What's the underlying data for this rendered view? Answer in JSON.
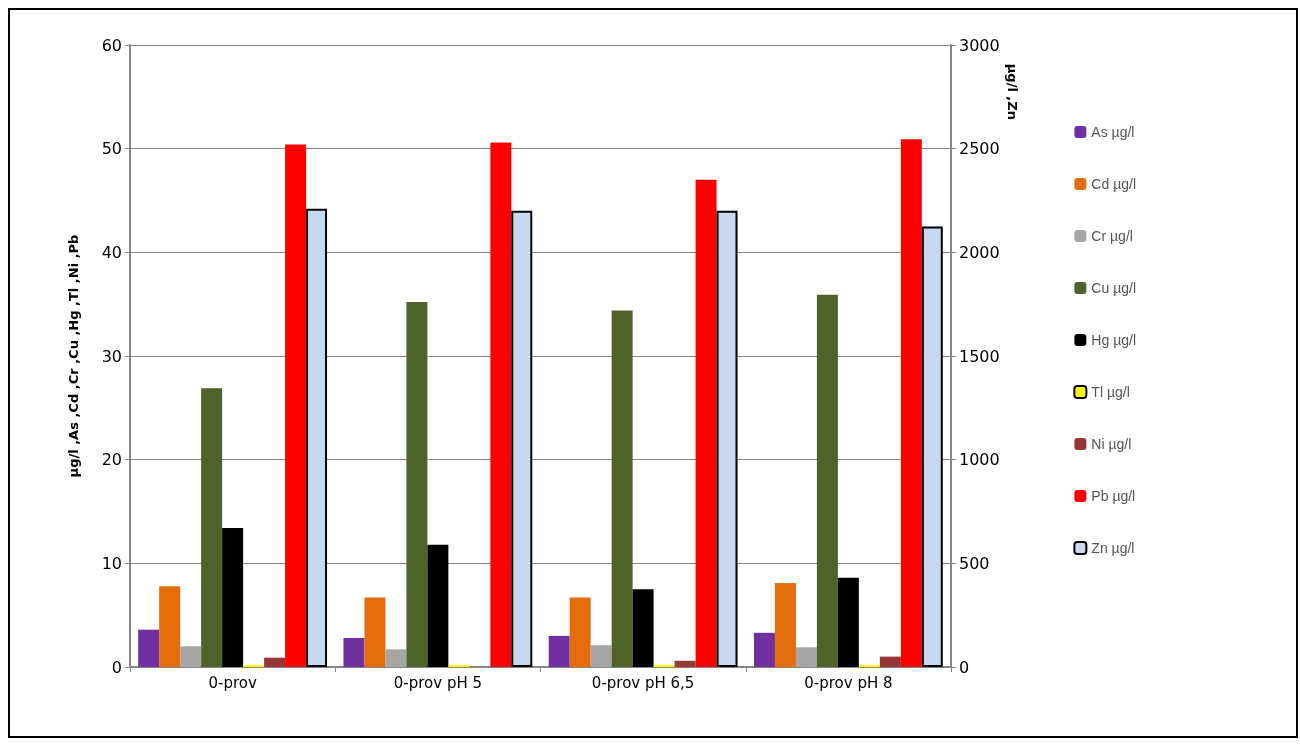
{
  "chart_data": {
    "type": "bar",
    "ylabel": "µg/l ,As ,Cd ,Cr ,Cu ,Hg ,Tl ,Ni ,Pb",
    "y2label": "µg/l ,Zn",
    "categories": [
      "0-prov",
      "0-prov pH 5",
      "0-prov pH 6,5",
      "0-prov pH 8"
    ],
    "series": [
      {
        "name": "As µg/l",
        "color": "#7030a0",
        "values": [
          3.6,
          2.8,
          3.0,
          3.3
        ]
      },
      {
        "name": "Cd µg/l",
        "color": "#e46c0a",
        "values": [
          7.8,
          6.7,
          6.7,
          8.1
        ]
      },
      {
        "name": "Cr µg/l",
        "color": "#a6a6a6",
        "values": [
          2.0,
          1.7,
          2.1,
          1.9
        ]
      },
      {
        "name": "Cu µg/l",
        "color": "#4f6228",
        "values": [
          26.9,
          35.2,
          34.4,
          35.9
        ]
      },
      {
        "name": "Hg µg/l",
        "color": "#000000",
        "values": [
          13.4,
          11.8,
          7.5,
          8.6
        ]
      },
      {
        "name": "Tl µg/l",
        "color": "#ffff00",
        "values": [
          0.2,
          0.2,
          0.2,
          0.2
        ]
      },
      {
        "name": "Ni µg/l",
        "color": "#953735",
        "values": [
          0.9,
          0,
          0.6,
          1.0
        ]
      },
      {
        "name": "Pb µg/l",
        "color": "#ff0000",
        "values": [
          50.4,
          50.6,
          47.0,
          50.9
        ]
      },
      {
        "name": "Zn µg/l",
        "color": "#c6d9f1",
        "axis": "y2",
        "values": [
          2210,
          2200,
          2200,
          2125
        ]
      }
    ],
    "ylim": [
      0,
      60
    ],
    "yticks": [
      0,
      10,
      20,
      30,
      40,
      50,
      60
    ],
    "y2lim": [
      0,
      3000
    ],
    "y2ticks": [
      0,
      500,
      1000,
      1500,
      2000,
      2500,
      3000
    ],
    "grid": "y",
    "legend": "right"
  }
}
